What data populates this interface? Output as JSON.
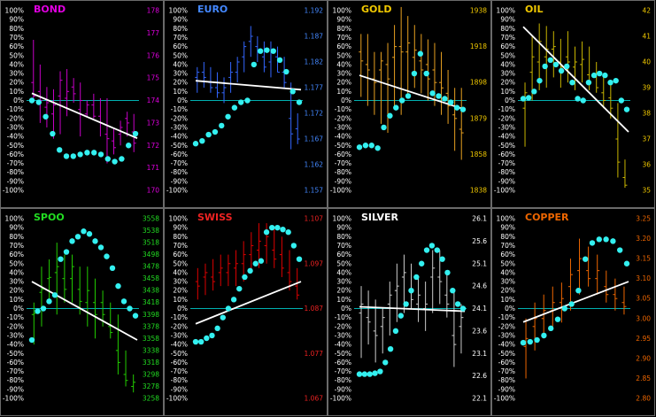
{
  "chart_data": [
    {
      "type": "bar",
      "title": "BOND",
      "title_color": "#e000e0",
      "bar_color": "#c800c8",
      "left_ticks": [
        "100%",
        "90%",
        "80%",
        "70%",
        "60%",
        "50%",
        "40%",
        "30%",
        "20%",
        "10%",
        "0%",
        "-10%",
        "-20%",
        "-30%",
        "-40%",
        "-50%",
        "-60%",
        "-70%",
        "-80%",
        "-90%",
        "-100%"
      ],
      "right_ticks": [
        "178",
        "177",
        "176",
        "175",
        "174",
        "173",
        "172",
        "171",
        "170"
      ],
      "price_range": [
        170,
        178
      ],
      "bars": [
        [
          174.0,
          176.7,
          174.8,
          174.2
        ],
        [
          173.0,
          175.6,
          174.4,
          174.0
        ],
        [
          172.8,
          174.6,
          173.7,
          173.9
        ],
        [
          172.3,
          174.5,
          173.4,
          173.8
        ],
        [
          172.5,
          175.3,
          174.2,
          174.9
        ],
        [
          173.3,
          175.4,
          174.1,
          174.4
        ],
        [
          173.9,
          175.0,
          174.6,
          174.3
        ],
        [
          172.4,
          174.8,
          173.6,
          174.0
        ],
        [
          173.3,
          174.0,
          173.4,
          173.8
        ],
        [
          173.2,
          174.3,
          173.8,
          173.3
        ],
        [
          172.4,
          174.1,
          173.3,
          173.0
        ],
        [
          171.2,
          174.1,
          172.5,
          172.3
        ],
        [
          171.6,
          172.8,
          172.2,
          171.9
        ],
        [
          172.0,
          173.1,
          172.5,
          172.8
        ],
        [
          172.4,
          173.5,
          173.2,
          173.0
        ],
        [
          171.7,
          173.4,
          172.6,
          172.1
        ]
      ],
      "trend_pct": [
        8,
        -42
      ],
      "dots_pct": [
        0,
        -2,
        -18,
        -37,
        -55,
        -62,
        -62,
        -60,
        -58,
        -58,
        -60,
        -65,
        -68,
        -65,
        -50,
        -37
      ]
    },
    {
      "type": "bar",
      "title": "EURO",
      "title_color": "#4488ff",
      "bar_color": "#3366ff",
      "left_ticks": [
        "100%",
        "90%",
        "80%",
        "70%",
        "60%",
        "50%",
        "40%",
        "30%",
        "20%",
        "10%",
        "0%",
        "-10%",
        "-20%",
        "-30%",
        "-40%",
        "-50%",
        "-60%",
        "-70%",
        "-80%",
        "-90%",
        "-100%"
      ],
      "right_ticks": [
        "1.192",
        "1.187",
        "1.182",
        "1.177",
        "1.172",
        "1.167",
        "1.162",
        "1.157"
      ],
      "price_range": [
        1.157,
        1.192
      ],
      "bars": [
        [
          1.176,
          1.181,
          1.179,
          1.18
        ],
        [
          1.177,
          1.182,
          1.18,
          1.179
        ],
        [
          1.176,
          1.181,
          1.178,
          1.177
        ],
        [
          1.175,
          1.18,
          1.177,
          1.176
        ],
        [
          1.174,
          1.179,
          1.176,
          1.177
        ],
        [
          1.176,
          1.182,
          1.179,
          1.18
        ],
        [
          1.178,
          1.183,
          1.18,
          1.182
        ],
        [
          1.18,
          1.186,
          1.183,
          1.185
        ],
        [
          1.183,
          1.189,
          1.186,
          1.187
        ],
        [
          1.182,
          1.187,
          1.185,
          1.184
        ],
        [
          1.18,
          1.186,
          1.183,
          1.181
        ],
        [
          1.179,
          1.186,
          1.182,
          1.184
        ],
        [
          1.18,
          1.185,
          1.183,
          1.18
        ],
        [
          1.177,
          1.183,
          1.18,
          1.178
        ],
        [
          1.165,
          1.178,
          1.171,
          1.168
        ],
        [
          1.166,
          1.172,
          1.169,
          1.167
        ]
      ],
      "trend_pct": [
        22,
        12
      ],
      "dots_pct": [
        -48,
        -45,
        -38,
        -35,
        -28,
        -18,
        -8,
        -2,
        0,
        40,
        55,
        56,
        55,
        45,
        32,
        10,
        -2
      ]
    },
    {
      "type": "bar",
      "title": "GOLD",
      "title_color": "#f0c800",
      "bar_color": "#e8a020",
      "left_ticks": [
        "100%",
        "90%",
        "80%",
        "70%",
        "60%",
        "50%",
        "40%",
        "30%",
        "20%",
        "10%",
        "0%",
        "-10%",
        "-20%",
        "-30%",
        "-40%",
        "-50%",
        "-60%",
        "-70%",
        "-80%",
        "-90%",
        "-100%"
      ],
      "right_ticks": [
        "1938",
        "1918",
        "1898",
        "1879",
        "1858",
        "1838"
      ],
      "price_range": [
        1838,
        1938
      ],
      "bars": [
        [
          1890,
          1925,
          1915,
          1910
        ],
        [
          1885,
          1925,
          1908,
          1905
        ],
        [
          1880,
          1915,
          1900,
          1898
        ],
        [
          1875,
          1915,
          1905,
          1910
        ],
        [
          1870,
          1920,
          1908,
          1900
        ],
        [
          1885,
          1930,
          1912,
          1918
        ],
        [
          1880,
          1940,
          1918,
          1915
        ],
        [
          1890,
          1935,
          1915,
          1920
        ],
        [
          1895,
          1930,
          1912,
          1916
        ],
        [
          1892,
          1925,
          1910,
          1905
        ],
        [
          1888,
          1922,
          1908,
          1900
        ],
        [
          1885,
          1920,
          1905,
          1898
        ],
        [
          1880,
          1915,
          1898,
          1895
        ],
        [
          1875,
          1905,
          1892,
          1885
        ],
        [
          1860,
          1895,
          1880,
          1878
        ],
        [
          1855,
          1895,
          1872,
          1870
        ]
      ],
      "trend_pct": [
        28,
        -10
      ],
      "dots_pct": [
        -52,
        -50,
        -50,
        -53,
        -30,
        -17,
        -8,
        0,
        5,
        30,
        52,
        30,
        8,
        5,
        2,
        -2,
        -8,
        -10
      ]
    },
    {
      "type": "bar",
      "title": "OIL",
      "title_color": "#f0c800",
      "bar_color": "#c8b400",
      "left_ticks": [
        "100%",
        "90%",
        "80%",
        "70%",
        "60%",
        "50%",
        "40%",
        "30%",
        "20%",
        "10%",
        "0%",
        "-10%",
        "-20%",
        "-30%",
        "-40%",
        "-50%",
        "-60%",
        "-70%",
        "-80%",
        "-90%",
        "-100%"
      ],
      "right_ticks": [
        "42",
        "41",
        "40",
        "39",
        "38",
        "37",
        "36",
        "35"
      ],
      "price_range": [
        35,
        42
      ],
      "bars": [
        [
          36.7,
          39.2,
          38.2,
          38.8
        ],
        [
          38.5,
          41.0,
          39.6,
          40.2
        ],
        [
          38.9,
          41.5,
          40.0,
          40.8
        ],
        [
          39.0,
          41.4,
          40.2,
          40.5
        ],
        [
          39.4,
          41.2,
          40.5,
          40.6
        ],
        [
          39.0,
          40.9,
          40.0,
          39.8
        ],
        [
          39.2,
          41.2,
          40.2,
          40.0
        ],
        [
          38.9,
          40.6,
          39.8,
          40.0
        ],
        [
          39.2,
          40.8,
          39.9,
          40.1
        ],
        [
          38.9,
          40.6,
          39.5,
          39.2
        ],
        [
          38.8,
          40.0,
          39.4,
          39.0
        ],
        [
          38.2,
          39.5,
          38.8,
          38.5
        ],
        [
          37.8,
          39.3,
          38.6,
          38.2
        ],
        [
          35.5,
          38.4,
          37.0,
          36.1
        ],
        [
          35.1,
          36.2,
          35.5,
          35.2
        ]
      ],
      "trend_pct": [
        82,
        -35
      ],
      "dots_pct": [
        2,
        3,
        10,
        22,
        38,
        45,
        40,
        33,
        38,
        20,
        2,
        0,
        20,
        28,
        30,
        28,
        20,
        22,
        0,
        -10
      ]
    },
    {
      "type": "bar",
      "title": "SPOO",
      "title_color": "#22dd22",
      "bar_color": "#22cc00",
      "left_ticks": [
        "100%",
        "90%",
        "80%",
        "70%",
        "60%",
        "50%",
        "40%",
        "30%",
        "20%",
        "10%",
        "0%",
        "-10%",
        "-20%",
        "-30%",
        "-40%",
        "-50%",
        "-60%",
        "-70%",
        "-80%",
        "-90%",
        "-100%"
      ],
      "right_ticks": [
        "3558",
        "3538",
        "3518",
        "3498",
        "3478",
        "3458",
        "3438",
        "3418",
        "3398",
        "3378",
        "3358",
        "3338",
        "3318",
        "3298",
        "3278",
        "3258"
      ],
      "price_range": [
        3258,
        3558
      ],
      "bars": [
        [
          3348,
          3418,
          3398,
          3400
        ],
        [
          3378,
          3478,
          3435,
          3440
        ],
        [
          3418,
          3490,
          3458,
          3460
        ],
        [
          3398,
          3518,
          3468,
          3478
        ],
        [
          3418,
          3498,
          3458,
          3440
        ],
        [
          3418,
          3498,
          3458,
          3478
        ],
        [
          3398,
          3478,
          3440,
          3420
        ],
        [
          3378,
          3478,
          3418,
          3438
        ],
        [
          3358,
          3458,
          3418,
          3398
        ],
        [
          3378,
          3438,
          3418,
          3398
        ],
        [
          3358,
          3418,
          3378,
          3368
        ],
        [
          3298,
          3398,
          3338,
          3318
        ],
        [
          3278,
          3338,
          3298,
          3288
        ],
        [
          3268,
          3298,
          3278,
          3285
        ]
      ],
      "trend_pct": [
        30,
        -35
      ],
      "dots_pct": [
        -35,
        -3,
        0,
        8,
        15,
        55,
        63,
        75,
        80,
        86,
        83,
        75,
        68,
        58,
        45,
        25,
        8,
        0,
        -8
      ]
    },
    {
      "type": "bar",
      "title": "SWISS",
      "title_color": "#ee2222",
      "bar_color": "#dd0000",
      "left_ticks": [
        "100%",
        "90%",
        "80%",
        "70%",
        "60%",
        "50%",
        "40%",
        "30%",
        "20%",
        "10%",
        "0%",
        "-10%",
        "-20%",
        "-30%",
        "-40%",
        "-50%",
        "-60%",
        "-70%",
        "-80%",
        "-90%",
        "-100%"
      ],
      "right_ticks": [
        "1.107",
        "1.097",
        "1.087",
        "1.077",
        "1.067"
      ],
      "price_range": [
        1.067,
        1.107
      ],
      "bars": [
        [
          1.089,
          1.096,
          1.093,
          1.092
        ],
        [
          1.09,
          1.097,
          1.094,
          1.095
        ],
        [
          1.091,
          1.098,
          1.094,
          1.093
        ],
        [
          1.092,
          1.099,
          1.095,
          1.096
        ],
        [
          1.092,
          1.099,
          1.095,
          1.097
        ],
        [
          1.092,
          1.1,
          1.096,
          1.097
        ],
        [
          1.093,
          1.102,
          1.097,
          1.099
        ],
        [
          1.095,
          1.104,
          1.099,
          1.101
        ],
        [
          1.096,
          1.106,
          1.1,
          1.102
        ],
        [
          1.097,
          1.106,
          1.101,
          1.103
        ],
        [
          1.096,
          1.105,
          1.1,
          1.098
        ],
        [
          1.094,
          1.103,
          1.099,
          1.096
        ],
        [
          1.091,
          1.1,
          1.095,
          1.093
        ],
        [
          1.089,
          1.096,
          1.092,
          1.09
        ]
      ],
      "trend_pct": [
        -17,
        30
      ],
      "dots_pct": [
        -37,
        -37,
        -33,
        -30,
        -22,
        -10,
        0,
        10,
        22,
        35,
        42,
        50,
        53,
        85,
        90,
        90,
        88,
        85,
        70,
        55
      ]
    },
    {
      "type": "bar",
      "title": "SILVER",
      "title_color": "#ffffff",
      "bar_color": "#cccccc",
      "left_ticks": [
        "100%",
        "90%",
        "80%",
        "70%",
        "60%",
        "50%",
        "40%",
        "30%",
        "20%",
        "10%",
        "0%",
        "-10%",
        "-20%",
        "-30%",
        "-40%",
        "-50%",
        "-60%",
        "-70%",
        "-80%",
        "-90%",
        "-100%"
      ],
      "right_ticks": [
        "26.1",
        "25.6",
        "25.1",
        "24.6",
        "24.1",
        "23.6",
        "23.1",
        "22.6",
        "22.1"
      ],
      "price_range": [
        22.1,
        26.1
      ],
      "bars": [
        [
          23.0,
          24.6,
          24.0,
          24.2
        ],
        [
          23.3,
          24.5,
          23.9,
          23.8
        ],
        [
          22.9,
          24.3,
          23.6,
          23.5
        ],
        [
          23.1,
          24.1,
          23.7,
          23.9
        ],
        [
          23.5,
          24.7,
          24.2,
          24.4
        ],
        [
          23.8,
          25.1,
          24.5,
          24.6
        ],
        [
          24.0,
          25.3,
          24.8,
          24.9
        ],
        [
          24.1,
          25.1,
          24.5,
          24.3
        ],
        [
          23.8,
          24.8,
          24.2,
          24.4
        ],
        [
          23.6,
          24.7,
          24.1,
          24.2
        ],
        [
          24.0,
          25.4,
          24.8,
          25.0
        ],
        [
          24.2,
          25.4,
          24.8,
          24.7
        ],
        [
          23.9,
          24.9,
          24.4,
          24.2
        ],
        [
          22.8,
          24.5,
          23.5,
          23.3
        ],
        [
          23.1,
          24.2,
          23.7,
          23.9
        ]
      ],
      "trend_pct": [
        2,
        -3
      ],
      "dots_pct": [
        -73,
        -73,
        -73,
        -72,
        -70,
        -60,
        -45,
        -25,
        -8,
        5,
        20,
        35,
        50,
        65,
        70,
        65,
        55,
        40,
        20,
        5,
        0
      ]
    },
    {
      "type": "bar",
      "title": "COPPER",
      "title_color": "#ee6600",
      "bar_color": "#ee6600",
      "left_ticks": [
        "100%",
        "90%",
        "80%",
        "70%",
        "60%",
        "50%",
        "40%",
        "30%",
        "20%",
        "10%",
        "0%",
        "-10%",
        "-20%",
        "-30%",
        "-40%",
        "-50%",
        "-60%",
        "-70%",
        "-80%",
        "-90%",
        "-100%"
      ],
      "right_ticks": [
        "3.25",
        "3.20",
        "3.15",
        "3.10",
        "3.05",
        "3.00",
        "2.95",
        "2.90",
        "2.85",
        "2.80"
      ],
      "price_range": [
        2.8,
        3.25
      ],
      "bars": [
        [
          2.85,
          3.0,
          2.93,
          2.95
        ],
        [
          2.92,
          3.04,
          2.98,
          3.0
        ],
        [
          2.95,
          3.06,
          3.0,
          3.02
        ],
        [
          2.98,
          3.08,
          3.02,
          3.04
        ],
        [
          2.99,
          3.09,
          3.04,
          3.05
        ],
        [
          3.02,
          3.15,
          3.08,
          3.11
        ],
        [
          3.06,
          3.2,
          3.12,
          3.15
        ],
        [
          3.08,
          3.18,
          3.12,
          3.1
        ],
        [
          3.06,
          3.16,
          3.1,
          3.12
        ],
        [
          3.04,
          3.12,
          3.08,
          3.06
        ],
        [
          3.02,
          3.1,
          3.06,
          3.05
        ],
        [
          3.01,
          3.08,
          3.04,
          3.03
        ]
      ],
      "trend_pct": [
        -15,
        30
      ],
      "dots_pct": [
        -38,
        -37,
        -35,
        -30,
        -22,
        -12,
        0,
        5,
        20,
        55,
        73,
        77,
        77,
        75,
        65,
        50
      ]
    }
  ]
}
